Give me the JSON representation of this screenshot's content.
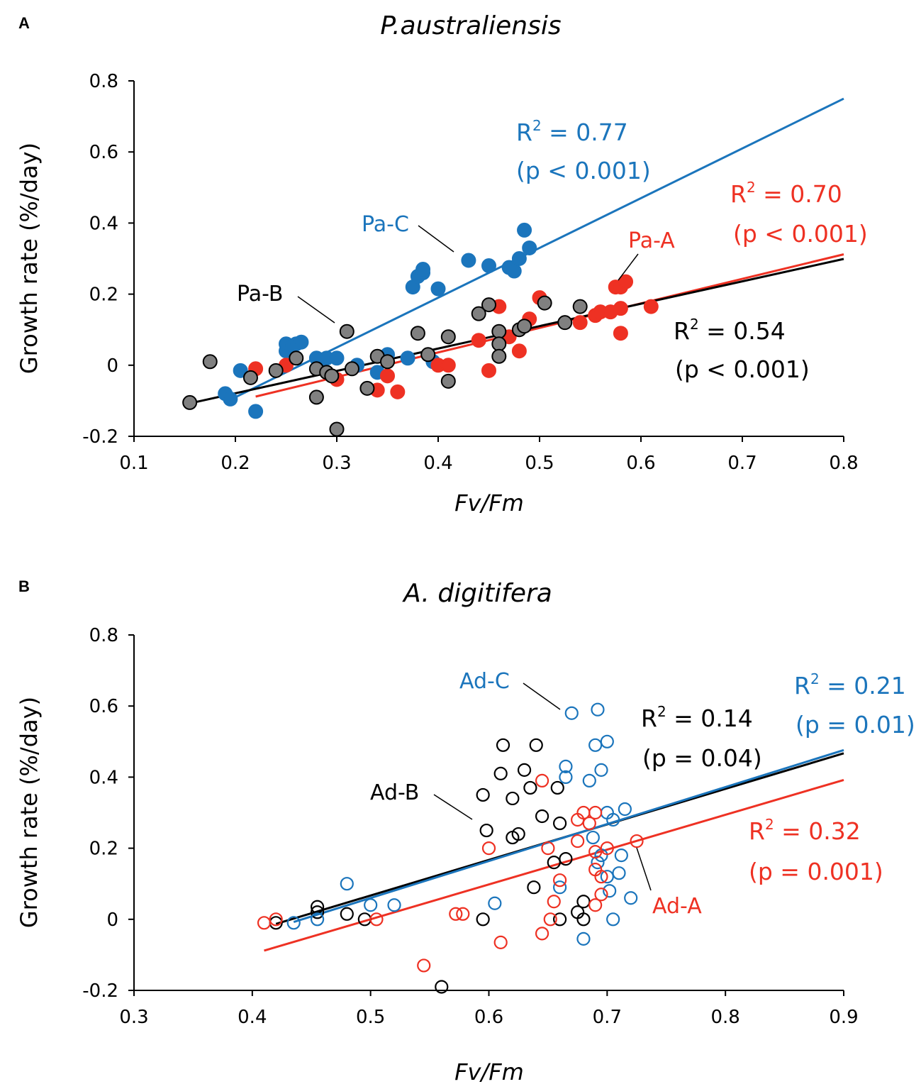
{
  "colors": {
    "red": "#ee3123",
    "blue": "#1b75bc",
    "black": "#000000",
    "gray": "#808080"
  },
  "chart_data": [
    {
      "panel": "A",
      "type": "scatter",
      "title": "P.australiensis",
      "xlabel": "Fv/Fm",
      "ylabel": "Growth rate (%/day)",
      "xlim": [
        0.1,
        0.8
      ],
      "ylim": [
        -0.2,
        0.8
      ],
      "xticks": [
        "0.1",
        "0.2",
        "0.3",
        "0.4",
        "0.5",
        "0.6",
        "0.7",
        "0.8"
      ],
      "yticks": [
        "-0.2",
        "0",
        "0.2",
        "0.4",
        "0.6",
        "0.8"
      ],
      "marker": "filled",
      "series": [
        {
          "name": "Pa-C",
          "color": "#1b75bc",
          "fill": "#1b75bc",
          "label": "Pa-C",
          "r2": "R2 = 0.77",
          "p": "(p < 0.001)",
          "fit": {
            "x1": 0.2,
            "x2": 0.8,
            "slope": 1.4,
            "intercept": -0.37
          },
          "points": [
            [
              0.19,
              -0.08
            ],
            [
              0.195,
              -0.095
            ],
            [
              0.205,
              -0.015
            ],
            [
              0.22,
              -0.13
            ],
            [
              0.25,
              0.04
            ],
            [
              0.25,
              0.06
            ],
            [
              0.255,
              0.055
            ],
            [
              0.26,
              0.06
            ],
            [
              0.265,
              0.065
            ],
            [
              0.28,
              0.02
            ],
            [
              0.285,
              0.015
            ],
            [
              0.29,
              0.02
            ],
            [
              0.3,
              0.02
            ],
            [
              0.32,
              0.0
            ],
            [
              0.34,
              -0.02
            ],
            [
              0.35,
              0.03
            ],
            [
              0.37,
              0.02
            ],
            [
              0.375,
              0.22
            ],
            [
              0.38,
              0.25
            ],
            [
              0.385,
              0.26
            ],
            [
              0.385,
              0.27
            ],
            [
              0.395,
              0.01
            ],
            [
              0.4,
              0.215
            ],
            [
              0.43,
              0.295
            ],
            [
              0.45,
              0.28
            ],
            [
              0.47,
              0.275
            ],
            [
              0.475,
              0.265
            ],
            [
              0.48,
              0.3
            ],
            [
              0.485,
              0.38
            ],
            [
              0.49,
              0.33
            ]
          ]
        },
        {
          "name": "Pa-A",
          "color": "#ee3123",
          "fill": "#ee3123",
          "label": "Pa-A",
          "r2": "R2 = 0.70",
          "p": "(p < 0.001)",
          "fit": {
            "x1": 0.22,
            "x2": 0.8,
            "slope": 0.69,
            "intercept": -0.24
          },
          "points": [
            [
              0.22,
              -0.01
            ],
            [
              0.25,
              0.0
            ],
            [
              0.3,
              -0.04
            ],
            [
              0.34,
              -0.07
            ],
            [
              0.35,
              -0.03
            ],
            [
              0.36,
              -0.075
            ],
            [
              0.4,
              0.0
            ],
            [
              0.41,
              0.0
            ],
            [
              0.44,
              0.07
            ],
            [
              0.45,
              -0.015
            ],
            [
              0.46,
              0.165
            ],
            [
              0.47,
              0.08
            ],
            [
              0.48,
              0.04
            ],
            [
              0.49,
              0.13
            ],
            [
              0.5,
              0.19
            ],
            [
              0.54,
              0.12
            ],
            [
              0.555,
              0.14
            ],
            [
              0.56,
              0.15
            ],
            [
              0.57,
              0.15
            ],
            [
              0.575,
              0.22
            ],
            [
              0.58,
              0.16
            ],
            [
              0.58,
              0.22
            ],
            [
              0.58,
              0.09
            ],
            [
              0.585,
              0.235
            ],
            [
              0.61,
              0.165
            ]
          ]
        },
        {
          "name": "Pa-B",
          "color": "#000000",
          "fill": "#808080",
          "label": "Pa-B",
          "r2": "R2 = 0.54",
          "p": "(p < 0.001)",
          "fit": {
            "x1": 0.155,
            "x2": 0.8,
            "slope": 0.63,
            "intercept": -0.205
          },
          "points": [
            [
              0.155,
              -0.105
            ],
            [
              0.175,
              0.01
            ],
            [
              0.215,
              -0.035
            ],
            [
              0.24,
              -0.015
            ],
            [
              0.26,
              0.02
            ],
            [
              0.28,
              -0.01
            ],
            [
              0.28,
              -0.09
            ],
            [
              0.29,
              -0.02
            ],
            [
              0.295,
              -0.03
            ],
            [
              0.3,
              -0.18
            ],
            [
              0.31,
              0.095
            ],
            [
              0.315,
              -0.01
            ],
            [
              0.33,
              -0.065
            ],
            [
              0.34,
              0.025
            ],
            [
              0.35,
              0.01
            ],
            [
              0.38,
              0.09
            ],
            [
              0.39,
              0.03
            ],
            [
              0.41,
              -0.045
            ],
            [
              0.41,
              0.08
            ],
            [
              0.44,
              0.145
            ],
            [
              0.45,
              0.17
            ],
            [
              0.46,
              0.095
            ],
            [
              0.46,
              0.06
            ],
            [
              0.46,
              0.025
            ],
            [
              0.48,
              0.1
            ],
            [
              0.485,
              0.11
            ],
            [
              0.505,
              0.175
            ],
            [
              0.525,
              0.12
            ],
            [
              0.54,
              0.165
            ]
          ]
        }
      ]
    },
    {
      "panel": "B",
      "type": "scatter",
      "title": "A. digitifera",
      "xlabel": "Fv/Fm",
      "ylabel": "Growth rate (%/day)",
      "xlim": [
        0.3,
        0.9
      ],
      "ylim": [
        -0.2,
        0.8
      ],
      "xticks": [
        "0.3",
        "0.4",
        "0.5",
        "0.6",
        "0.7",
        "0.8",
        "0.9"
      ],
      "yticks": [
        "-0.2",
        "0",
        "0.2",
        "0.4",
        "0.6",
        "0.8"
      ],
      "marker": "open",
      "series": [
        {
          "name": "Ad-B",
          "color": "#000000",
          "fill": "none",
          "label": "Ad-B",
          "r2": "R2 = 0.14",
          "p": "(p = 0.04)",
          "fit": {
            "x1": 0.42,
            "x2": 0.9,
            "slope": 1.0,
            "intercept": -0.433
          },
          "points": [
            [
              0.42,
              -0.01
            ],
            [
              0.455,
              0.035
            ],
            [
              0.455,
              0.02
            ],
            [
              0.48,
              0.015
            ],
            [
              0.495,
              0.0
            ],
            [
              0.595,
              0.35
            ],
            [
              0.595,
              0.0
            ],
            [
              0.598,
              0.25
            ],
            [
              0.61,
              0.41
            ],
            [
              0.612,
              0.49
            ],
            [
              0.62,
              0.34
            ],
            [
              0.62,
              0.23
            ],
            [
              0.625,
              0.24
            ],
            [
              0.63,
              0.42
            ],
            [
              0.635,
              0.37
            ],
            [
              0.638,
              0.09
            ],
            [
              0.64,
              0.49
            ],
            [
              0.645,
              0.29
            ],
            [
              0.655,
              0.16
            ],
            [
              0.658,
              0.37
            ],
            [
              0.66,
              0.27
            ],
            [
              0.66,
              0.0
            ],
            [
              0.665,
              0.17
            ],
            [
              0.675,
              0.02
            ],
            [
              0.68,
              0.0
            ],
            [
              0.68,
              0.05
            ],
            [
              0.56,
              -0.19
            ]
          ]
        },
        {
          "name": "Ad-C",
          "color": "#1b75bc",
          "fill": "none",
          "label": "Ad-C",
          "r2": "R2 = 0.21",
          "p": "(p = 0.01)",
          "fit": {
            "x1": 0.435,
            "x2": 0.9,
            "slope": 1.04,
            "intercept": -0.46
          },
          "points": [
            [
              0.435,
              -0.01
            ],
            [
              0.455,
              0.0
            ],
            [
              0.48,
              0.1
            ],
            [
              0.5,
              0.04
            ],
            [
              0.52,
              0.04
            ],
            [
              0.605,
              0.045
            ],
            [
              0.66,
              0.09
            ],
            [
              0.665,
              0.43
            ],
            [
              0.665,
              0.4
            ],
            [
              0.67,
              0.58
            ],
            [
              0.68,
              -0.055
            ],
            [
              0.685,
              0.39
            ],
            [
              0.688,
              0.23
            ],
            [
              0.69,
              0.49
            ],
            [
              0.692,
              0.16
            ],
            [
              0.692,
              0.59
            ],
            [
              0.695,
              0.42
            ],
            [
              0.695,
              0.18
            ],
            [
              0.7,
              0.12
            ],
            [
              0.7,
              0.3
            ],
            [
              0.7,
              0.5
            ],
            [
              0.702,
              0.08
            ],
            [
              0.705,
              0.0
            ],
            [
              0.705,
              0.28
            ],
            [
              0.71,
              0.13
            ],
            [
              0.712,
              0.18
            ],
            [
              0.715,
              0.31
            ],
            [
              0.72,
              0.06
            ]
          ]
        },
        {
          "name": "Ad-A",
          "color": "#ee3123",
          "fill": "none",
          "label": "Ad-A",
          "r2": "R2 = 0.32",
          "p": "(p = 0.001)",
          "fit": {
            "x1": 0.41,
            "x2": 0.9,
            "slope": 0.98,
            "intercept": -0.49
          },
          "points": [
            [
              0.41,
              -0.01
            ],
            [
              0.42,
              0.0
            ],
            [
              0.505,
              0.0
            ],
            [
              0.545,
              -0.13
            ],
            [
              0.572,
              0.015
            ],
            [
              0.578,
              0.015
            ],
            [
              0.6,
              0.2
            ],
            [
              0.61,
              -0.065
            ],
            [
              0.645,
              -0.04
            ],
            [
              0.645,
              0.39
            ],
            [
              0.65,
              0.2
            ],
            [
              0.652,
              0.0
            ],
            [
              0.655,
              0.05
            ],
            [
              0.66,
              0.11
            ],
            [
              0.675,
              0.22
            ],
            [
              0.675,
              0.28
            ],
            [
              0.68,
              0.3
            ],
            [
              0.685,
              0.27
            ],
            [
              0.69,
              0.3
            ],
            [
              0.69,
              0.19
            ],
            [
              0.69,
              0.14
            ],
            [
              0.69,
              0.04
            ],
            [
              0.695,
              0.07
            ],
            [
              0.695,
              0.12
            ],
            [
              0.7,
              0.2
            ],
            [
              0.725,
              0.22
            ]
          ]
        }
      ]
    }
  ]
}
